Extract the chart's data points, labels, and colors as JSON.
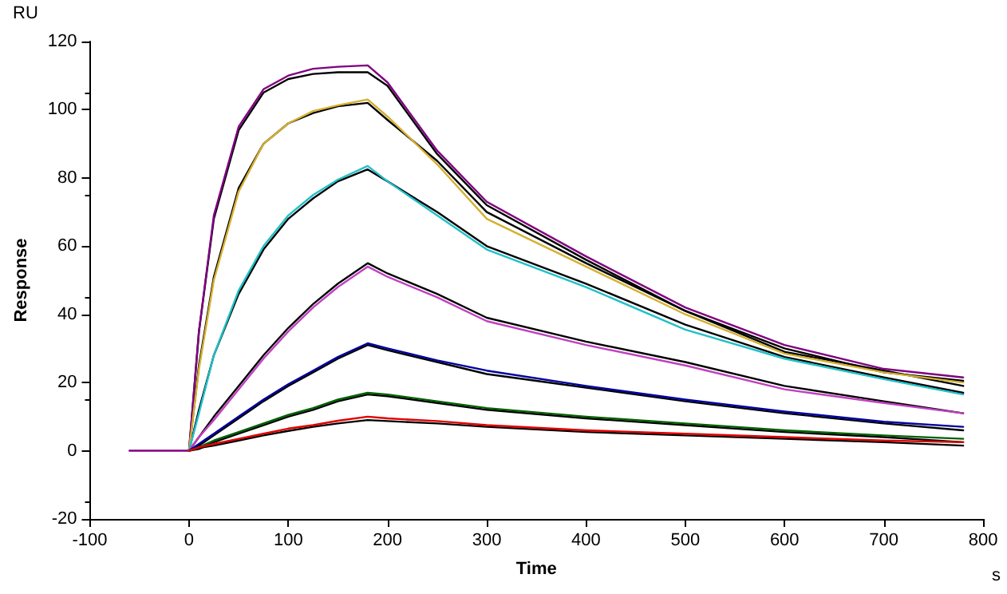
{
  "chart_data": {
    "type": "line",
    "xlabel": "Time",
    "ylabel": "Response",
    "annotations": [
      "RU",
      "s"
    ],
    "x": [
      -60,
      0,
      10,
      25,
      50,
      75,
      100,
      125,
      150,
      180,
      200,
      250,
      300,
      400,
      500,
      600,
      700,
      780
    ],
    "series": [
      {
        "color": "#800080",
        "values": [
          0,
          0,
          35,
          69,
          95,
          106,
          110,
          112,
          112.6,
          113,
          108,
          88,
          73,
          57,
          42,
          31,
          24,
          21.5
        ]
      },
      {
        "color": "#000000",
        "values": [
          null,
          0,
          35,
          68,
          94,
          105,
          109,
          110.5,
          111,
          111,
          107,
          87,
          72,
          56,
          41,
          30,
          23,
          20.5
        ]
      },
      {
        "color": "#d4b030",
        "values": [
          null,
          0,
          24,
          50,
          76,
          90,
          96,
          99.6,
          101.3,
          103,
          98,
          84,
          68,
          54,
          40,
          28.5,
          23,
          20
        ]
      },
      {
        "color": "#000000",
        "values": [
          null,
          0,
          25,
          51,
          77,
          90,
          96,
          99,
          101,
          102,
          97,
          85,
          70,
          55,
          41,
          29,
          23.5,
          19
        ]
      },
      {
        "color": "#20c0c8",
        "values": [
          null,
          0,
          11,
          28,
          47,
          60,
          69,
          75,
          79.5,
          83.5,
          79,
          69,
          59,
          48,
          35.5,
          27,
          21,
          16.5
        ]
      },
      {
        "color": "#000000",
        "values": [
          null,
          0,
          12,
          28,
          46,
          59,
          68,
          74,
          79,
          82.5,
          79,
          70,
          60,
          49,
          37,
          27.5,
          21.5,
          17
        ]
      },
      {
        "color": "#c040c0",
        "values": [
          null,
          0,
          4,
          9,
          18,
          27,
          35,
          42,
          48,
          54,
          51,
          45,
          38,
          31,
          25,
          18,
          14,
          11
        ]
      },
      {
        "color": "#000000",
        "values": [
          null,
          0,
          4,
          10,
          19,
          28,
          36,
          43,
          49,
          55,
          52,
          46,
          39,
          32,
          26,
          19,
          14.5,
          11
        ]
      },
      {
        "color": "#0000a0",
        "values": [
          null,
          0,
          2,
          5,
          10,
          15,
          19.5,
          23.5,
          27.5,
          31.5,
          30,
          26.5,
          23.5,
          19,
          15,
          11.5,
          8.5,
          7
        ]
      },
      {
        "color": "#000000",
        "values": [
          null,
          0,
          1.5,
          4.5,
          9.5,
          14.5,
          19,
          23,
          27,
          31,
          29.5,
          26,
          22.5,
          18.5,
          14.5,
          11,
          8,
          6
        ]
      },
      {
        "color": "#006000",
        "values": [
          null,
          0,
          1,
          3,
          5.5,
          8,
          10.5,
          12.5,
          15,
          17,
          16.5,
          14.5,
          12.5,
          10,
          8,
          6,
          4.5,
          3.5
        ]
      },
      {
        "color": "#000000",
        "values": [
          null,
          0,
          0.5,
          2.5,
          5,
          7.5,
          10,
          12,
          14.5,
          16.5,
          16,
          14,
          12,
          9.5,
          7.5,
          5.5,
          4,
          2.5
        ]
      },
      {
        "color": "#e00000",
        "values": [
          null,
          0,
          1,
          2,
          3.5,
          5,
          6.5,
          7.5,
          8.8,
          10,
          9.5,
          8.7,
          7.5,
          6,
          5,
          4,
          3,
          2.5
        ]
      },
      {
        "color": "#000000",
        "values": [
          null,
          0,
          0.8,
          1.5,
          3,
          4.5,
          5.8,
          7,
          8,
          9,
          8.7,
          8,
          7,
          5.5,
          4.5,
          3.5,
          2.5,
          1.5
        ]
      }
    ],
    "xlim": [
      -100,
      800
    ],
    "xticks": [
      -100,
      0,
      100,
      200,
      300,
      400,
      500,
      600,
      700,
      800
    ],
    "ylim": [
      -20,
      120
    ],
    "yticks": [
      -20,
      0,
      20,
      40,
      60,
      80,
      100,
      120
    ],
    "grid": false,
    "marker": "none",
    "line_style": "solid"
  }
}
